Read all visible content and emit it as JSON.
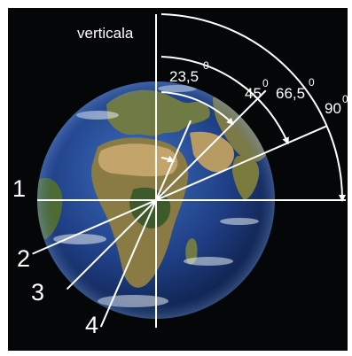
{
  "diagram": {
    "vertical_label": "verticala",
    "degree_symbol": "0",
    "angle_labels": [
      {
        "value": "23,5",
        "angle_deg": 23.5
      },
      {
        "value": "45",
        "angle_deg": 45
      },
      {
        "value": "66,5",
        "angle_deg": 66.5
      },
      {
        "value": "90",
        "angle_deg": 90
      }
    ],
    "line_labels": [
      "1",
      "2",
      "3",
      "4"
    ],
    "colors": {
      "background": "#050608",
      "frame": "#ffffff",
      "lines": "#ffffff",
      "ocean": "#1f3f86",
      "land": "#6d7a3c",
      "desert": "#b79a62",
      "ice": "#e8eef2"
    }
  }
}
